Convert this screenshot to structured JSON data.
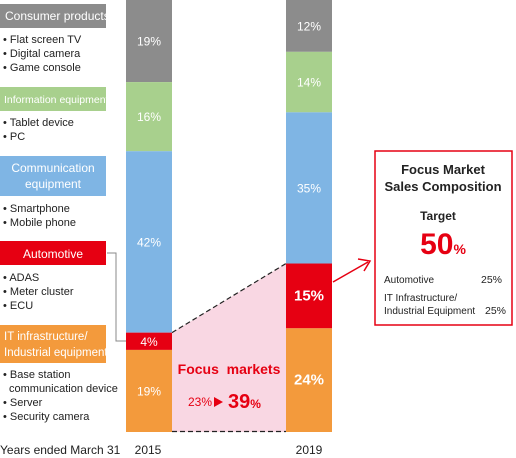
{
  "chart_data": {
    "type": "bar",
    "stacked": true,
    "categories": [
      "2015",
      "2019"
    ],
    "unit": "%",
    "ylim": [
      0,
      100
    ],
    "series": [
      {
        "name": "Consumer products",
        "values": [
          19,
          12
        ],
        "color": "#8c8c8c",
        "items": [
          "Flat screen TV",
          "Digital camera",
          "Game console"
        ]
      },
      {
        "name": "Information equipment",
        "values": [
          16,
          14
        ],
        "color": "#a8d08d",
        "items": [
          "Tablet device",
          "PC"
        ]
      },
      {
        "name": "Communication equipment",
        "values": [
          42,
          35
        ],
        "color": "#7fb5e4",
        "items": [
          "Smartphone",
          "Mobile phone"
        ]
      },
      {
        "name": "Automotive",
        "values": [
          4,
          15
        ],
        "color": "#e60012",
        "items": [
          "ADAS",
          "Meter cluster",
          "ECU"
        ]
      },
      {
        "name": "IT infrastructure/ Industrial equipment",
        "values": [
          19,
          24
        ],
        "color": "#f39a3c",
        "items": [
          "Base station communication device",
          "Server",
          "Security camera"
        ]
      }
    ],
    "xlabel": "Years ended March 31",
    "bar_labels": [
      [
        "19%",
        "16%",
        "42%",
        "4%",
        "19%"
      ],
      [
        "12%",
        "14%",
        "35%",
        "15%",
        "24%"
      ]
    ],
    "legend_placement": "left",
    "annotations": {
      "focus_title": "Focus  markets",
      "focus_from": "23%",
      "focus_to": "39",
      "focus_to_unit": "%"
    },
    "target_box": {
      "title_line1": "Focus Market",
      "title_line2": "Sales Composition",
      "target_label": "Target",
      "target_value": "50",
      "target_unit": "%",
      "rows": [
        {
          "label": "Automotive",
          "value": "25%"
        },
        {
          "label": "IT Infrastructure/ Industrial Equipment",
          "value": "25%"
        }
      ]
    }
  },
  "legend_text": {
    "cp": "Consumer products",
    "ie": "Information equipment",
    "ce1": "Communication",
    "ce2": "equipment",
    "auto": "Automotive",
    "it1": "IT infrastructure/",
    "it2": "Industrial equipment"
  },
  "legend_items": {
    "cp": [
      "Flat screen TV",
      "Digital camera",
      "Game console"
    ],
    "ie": [
      "Tablet device",
      "PC"
    ],
    "ce": [
      "Smartphone",
      "Mobile phone"
    ],
    "auto": [
      "ADAS",
      "Meter cluster",
      "ECU"
    ],
    "it": [
      "Base station",
      "communication device",
      "Server",
      "Security camera"
    ]
  },
  "target_rows_text": {
    "r2_line1": "IT Infrastructure/",
    "r2_line2": "Industrial Equipment"
  },
  "colors": {
    "consumer": "#8c8c8c",
    "information": "#a8d08d",
    "communication": "#7fb5e4",
    "automotive": "#e60012",
    "it": "#f39a3c",
    "focus_area": "#f9d7e3",
    "accent_red": "#e60012"
  }
}
